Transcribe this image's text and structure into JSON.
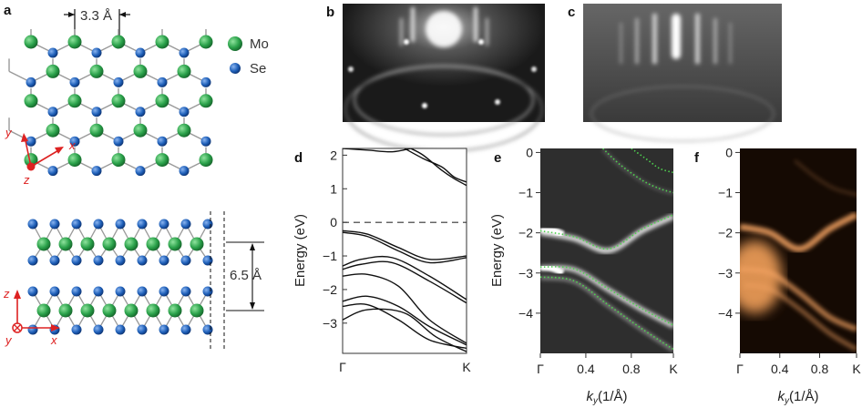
{
  "panel_labels": [
    "a",
    "b",
    "c",
    "d",
    "e",
    "f"
  ],
  "panel_a": {
    "lattice_constant_label": "3.3 Å",
    "interlayer_label": "6.5 Å",
    "legend": [
      {
        "label": "Mo",
        "color": "#2aa14a"
      },
      {
        "label": "Se",
        "color": "#1e5fb8"
      }
    ],
    "top_axes": [
      "y",
      "x",
      "z"
    ],
    "side_axes": [
      "z",
      "y",
      "x"
    ]
  },
  "chart_data": [
    {
      "panel": "d",
      "type": "line",
      "ylabel": "Energy (eV)",
      "ylim": [
        -3.9,
        2.2
      ],
      "yticks": [
        "2",
        "1",
        "0",
        "−1",
        "−2",
        "−3"
      ],
      "ytick_values": [
        2,
        1,
        0,
        -1,
        -2,
        -3
      ],
      "xtick_labels": [
        "Γ",
        "K"
      ],
      "xtick_values": [
        0,
        1
      ],
      "fermi_level": 0,
      "series": [
        {
          "x": [
            0,
            0.2,
            0.45,
            0.7,
            1.0
          ],
          "y": [
            -0.25,
            -0.35,
            -0.75,
            -1.1,
            -1.0
          ]
        },
        {
          "x": [
            0,
            0.2,
            0.45,
            0.7,
            1.0
          ],
          "y": [
            -0.3,
            -0.42,
            -0.85,
            -1.2,
            -1.05
          ]
        },
        {
          "x": [
            0,
            0.15,
            0.4,
            0.7,
            1.0
          ],
          "y": [
            -1.3,
            -1.1,
            -1.05,
            -1.6,
            -2.3
          ]
        },
        {
          "x": [
            0,
            0.15,
            0.4,
            0.7,
            1.0
          ],
          "y": [
            -1.4,
            -1.25,
            -1.2,
            -1.75,
            -2.4
          ]
        },
        {
          "x": [
            0,
            0.2,
            0.45,
            0.7,
            1.0
          ],
          "y": [
            -1.6,
            -1.55,
            -1.9,
            -2.9,
            -3.6
          ]
        },
        {
          "x": [
            0,
            0.2,
            0.45,
            0.7,
            1.0
          ],
          "y": [
            -2.35,
            -2.2,
            -2.5,
            -3.1,
            -3.65
          ]
        },
        {
          "x": [
            0,
            0.2,
            0.45,
            0.7,
            1.0
          ],
          "y": [
            -2.5,
            -2.45,
            -2.9,
            -3.5,
            -3.75
          ]
        },
        {
          "x": [
            0,
            0.2,
            0.5,
            0.75,
            1.0
          ],
          "y": [
            -2.9,
            -2.6,
            -2.7,
            -3.4,
            -3.85
          ]
        },
        {
          "x": [
            0.55,
            0.65,
            0.8,
            0.9,
            1.0
          ],
          "y": [
            2.2,
            2.0,
            1.55,
            1.3,
            1.1
          ]
        },
        {
          "x": [
            0.5,
            0.65,
            0.8,
            0.9,
            1.0
          ],
          "y": [
            2.2,
            1.9,
            1.65,
            1.35,
            1.2
          ]
        },
        {
          "x": [
            0.0,
            0.2,
            0.4,
            0.55
          ],
          "y": [
            2.2,
            2.15,
            2.1,
            2.2
          ]
        }
      ]
    },
    {
      "panel": "e",
      "type": "heatmap",
      "ylabel": "Energy (eV)",
      "xlabel": "k_y(1/Å)",
      "ylim": [
        -5.0,
        0.1
      ],
      "yticks": [
        "0",
        "−1",
        "−2",
        "−3",
        "−4"
      ],
      "ytick_values": [
        0,
        -1,
        -2,
        -3,
        -4
      ],
      "xtick_labels": [
        "Γ",
        "0.4",
        "0.8",
        "K"
      ],
      "xtick_values": [
        0,
        0.4,
        0.8,
        1.17
      ],
      "xlim": [
        0,
        1.17
      ],
      "calculated_bands_color": "#4fd14f",
      "calculated_bands": [
        {
          "x": [
            0,
            0.3,
            0.6,
            0.9,
            1.17
          ],
          "y": [
            -1.95,
            -2.1,
            -2.4,
            -1.9,
            -1.55
          ]
        },
        {
          "x": [
            0,
            0.3,
            0.6,
            0.9,
            1.17
          ],
          "y": [
            -2.85,
            -2.9,
            -3.4,
            -3.9,
            -4.3
          ]
        },
        {
          "x": [
            0,
            0.3,
            0.6,
            0.9,
            1.17
          ],
          "y": [
            -3.1,
            -3.2,
            -3.8,
            -4.4,
            -4.9
          ]
        },
        {
          "x": [
            0.55,
            0.7,
            0.9,
            1.05,
            1.17
          ],
          "y": [
            0.1,
            -0.3,
            -0.7,
            -0.9,
            -1.0
          ]
        },
        {
          "x": [
            0.8,
            0.95,
            1.05,
            1.17
          ],
          "y": [
            0.1,
            -0.2,
            -0.4,
            -0.5
          ]
        }
      ]
    },
    {
      "panel": "f",
      "type": "heatmap",
      "xlabel": "k_y(1/Å)",
      "ylim": [
        -5.0,
        0.1
      ],
      "yticks": [
        "0",
        "−1",
        "−2",
        "−3",
        "−4"
      ],
      "ytick_values": [
        0,
        -1,
        -2,
        -3,
        -4
      ],
      "xtick_labels": [
        "Γ",
        "0.4",
        "0.8",
        "K"
      ],
      "xtick_values": [
        0,
        0.4,
        0.8,
        1.17
      ],
      "xlim": [
        0,
        1.17
      ]
    }
  ]
}
